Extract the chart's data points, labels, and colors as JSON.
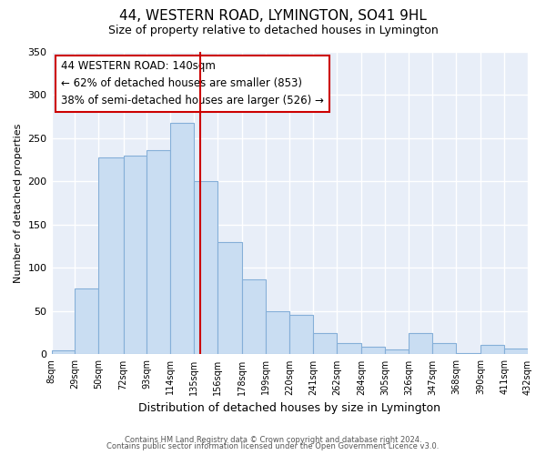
{
  "title": "44, WESTERN ROAD, LYMINGTON, SO41 9HL",
  "subtitle": "Size of property relative to detached houses in Lymington",
  "xlabel": "Distribution of detached houses by size in Lymington",
  "ylabel": "Number of detached properties",
  "bin_edges": [
    8,
    29,
    50,
    72,
    93,
    114,
    135,
    156,
    178,
    199,
    220,
    241,
    262,
    284,
    305,
    326,
    347,
    368,
    390,
    411,
    432
  ],
  "bin_labels": [
    "8sqm",
    "29sqm",
    "50sqm",
    "72sqm",
    "93sqm",
    "114sqm",
    "135sqm",
    "156sqm",
    "178sqm",
    "199sqm",
    "220sqm",
    "241sqm",
    "262sqm",
    "284sqm",
    "305sqm",
    "326sqm",
    "347sqm",
    "368sqm",
    "390sqm",
    "411sqm",
    "432sqm"
  ],
  "bar_heights": [
    5,
    76,
    228,
    230,
    236,
    268,
    200,
    130,
    87,
    50,
    46,
    25,
    13,
    9,
    6,
    25,
    13,
    2,
    11,
    7
  ],
  "bar_color": "#c9ddf2",
  "bar_edge_color": "#85afd8",
  "vline_x": 140,
  "vline_color": "#cc0000",
  "annotation_title": "44 WESTERN ROAD: 140sqm",
  "annotation_line1": "← 62% of detached houses are smaller (853)",
  "annotation_line2": "38% of semi-detached houses are larger (526) →",
  "annotation_box_edge_color": "#cc0000",
  "ylim": [
    0,
    350
  ],
  "yticks": [
    0,
    50,
    100,
    150,
    200,
    250,
    300,
    350
  ],
  "footer1": "Contains HM Land Registry data © Crown copyright and database right 2024.",
  "footer2": "Contains public sector information licensed under the Open Government Licence v3.0.",
  "fig_bg_color": "#ffffff",
  "plot_bg_color": "#e8eef8"
}
